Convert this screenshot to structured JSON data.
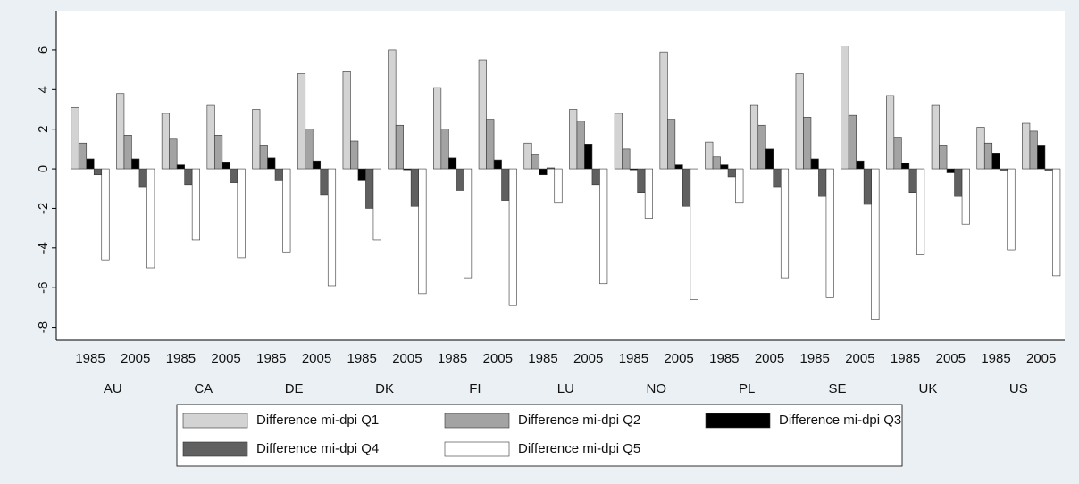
{
  "chart_data": {
    "type": "bar",
    "categories": [
      "1985",
      "2005",
      "1985",
      "2005",
      "1985",
      "2005",
      "1985",
      "2005",
      "1985",
      "2005",
      "1985",
      "2005",
      "1985",
      "2005",
      "1985",
      "2005",
      "1985",
      "2005",
      "1985",
      "2005",
      "1985",
      "2005"
    ],
    "groups": [
      "AU",
      "CA",
      "DE",
      "DK",
      "FI",
      "LU",
      "NO",
      "PL",
      "SE",
      "UK",
      "US"
    ],
    "series": [
      {
        "name": "Difference mi-dpi Q1",
        "color": "#d3d3d3",
        "values": [
          3.1,
          3.8,
          2.8,
          3.2,
          3.0,
          4.8,
          4.9,
          6.0,
          4.1,
          5.5,
          1.3,
          3.0,
          2.8,
          5.9,
          1.35,
          3.2,
          4.8,
          6.2,
          3.7,
          3.2,
          2.1,
          2.3
        ]
      },
      {
        "name": "Difference mi-dpi Q2",
        "color": "#a3a3a3",
        "values": [
          1.3,
          1.7,
          1.5,
          1.7,
          1.2,
          2.0,
          1.4,
          2.2,
          2.0,
          2.5,
          0.7,
          2.4,
          1.0,
          2.5,
          0.6,
          2.2,
          2.6,
          2.7,
          1.6,
          1.2,
          1.3,
          1.9
        ]
      },
      {
        "name": "Difference mi-dpi Q3",
        "color": "#000000",
        "values": [
          0.5,
          0.5,
          0.2,
          0.35,
          0.55,
          0.4,
          -0.6,
          -0.05,
          0.55,
          0.45,
          -0.3,
          1.25,
          -0.05,
          0.2,
          0.2,
          1.0,
          0.5,
          0.4,
          0.3,
          -0.2,
          0.8,
          1.2
        ]
      },
      {
        "name": "Difference mi-dpi Q4",
        "color": "#606060",
        "values": [
          -0.3,
          -0.9,
          -0.8,
          -0.7,
          -0.6,
          -1.3,
          -2.0,
          -1.9,
          -1.1,
          -1.6,
          0.05,
          -0.8,
          -1.2,
          -1.9,
          -0.4,
          -0.9,
          -1.4,
          -1.8,
          -1.2,
          -1.4,
          -0.1,
          -0.1
        ]
      },
      {
        "name": "Difference mi-dpi Q5",
        "color": "#ffffff",
        "values": [
          -4.6,
          -5.0,
          -3.6,
          -4.5,
          -4.2,
          -5.9,
          -3.6,
          -6.3,
          -5.5,
          -6.9,
          -1.7,
          -5.8,
          -2.5,
          -6.6,
          -1.7,
          -5.5,
          -6.5,
          -7.6,
          -4.3,
          -2.8,
          -4.1,
          -5.4
        ]
      }
    ],
    "ylim": [
      -8.65,
      7.98
    ],
    "yticks": [
      -8,
      -6,
      -4,
      -2,
      0,
      2,
      4,
      6
    ],
    "grid": false,
    "legend": "bottom"
  }
}
